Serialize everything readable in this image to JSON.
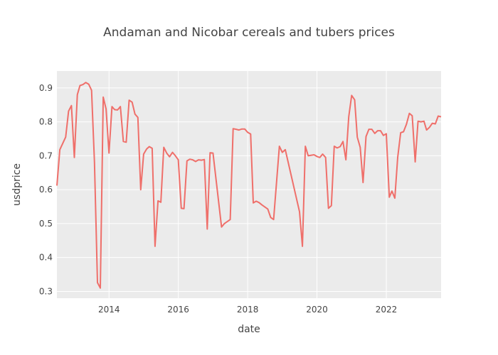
{
  "chart_data": {
    "type": "line",
    "title": "Andaman and Nicobar cereals and tubers prices",
    "xlabel": "date",
    "ylabel": "usdprice",
    "xlim": [
      "2012-07-01",
      "2023-08-01"
    ],
    "ylim": [
      0.28,
      0.95
    ],
    "grid": true,
    "legend": "none",
    "line_color": "#ef6f6a",
    "background_color": "#ebebeb",
    "x_ticks": [
      {
        "value": "2014-01-01",
        "label": "2014"
      },
      {
        "value": "2016-01-01",
        "label": "2016"
      },
      {
        "value": "2018-01-01",
        "label": "2018"
      },
      {
        "value": "2020-01-01",
        "label": "2020"
      },
      {
        "value": "2022-01-01",
        "label": "2022"
      }
    ],
    "y_ticks": [
      {
        "value": 0.3,
        "label": "0.3"
      },
      {
        "value": 0.4,
        "label": "0.4"
      },
      {
        "value": 0.5,
        "label": "0.5"
      },
      {
        "value": 0.6,
        "label": "0.6"
      },
      {
        "value": 0.7,
        "label": "0.7"
      },
      {
        "value": 0.8,
        "label": "0.8"
      },
      {
        "value": 0.9,
        "label": "0.9"
      }
    ],
    "series": [
      {
        "x": [
          "2012-07-01",
          "2012-08-01",
          "2012-10-01",
          "2012-11-01",
          "2012-12-01",
          "2013-01-01",
          "2013-02-01",
          "2013-03-01",
          "2013-04-01",
          "2013-05-01",
          "2013-06-01",
          "2013-07-01",
          "2013-08-01",
          "2013-09-01",
          "2013-10-01",
          "2013-11-01",
          "2013-12-01",
          "2014-01-01",
          "2014-02-01",
          "2014-03-01",
          "2014-04-01",
          "2014-05-01",
          "2014-06-01",
          "2014-07-01",
          "2014-08-01",
          "2014-09-01",
          "2014-10-01",
          "2014-11-01",
          "2014-12-01",
          "2015-01-01",
          "2015-02-01",
          "2015-03-01",
          "2015-04-01",
          "2015-05-01",
          "2015-06-01",
          "2015-07-01",
          "2015-08-01",
          "2015-09-01",
          "2015-10-01",
          "2015-11-01",
          "2015-12-01",
          "2016-01-01",
          "2016-02-01",
          "2016-03-01",
          "2016-04-01",
          "2016-05-01",
          "2016-06-01",
          "2016-07-01",
          "2016-08-01",
          "2016-09-01",
          "2016-10-01",
          "2016-11-01",
          "2016-12-01",
          "2017-01-01",
          "2017-04-01",
          "2017-05-01",
          "2017-07-01",
          "2017-08-01",
          "2017-09-01",
          "2017-10-01",
          "2017-11-01",
          "2017-12-01",
          "2018-01-01",
          "2018-02-01",
          "2018-03-01",
          "2018-04-01",
          "2018-05-01",
          "2018-06-01",
          "2018-08-01",
          "2018-09-01",
          "2018-10-01",
          "2018-12-01",
          "2019-01-01",
          "2019-02-01",
          "2019-07-01",
          "2019-08-01",
          "2019-09-01",
          "2019-10-01",
          "2019-12-01",
          "2020-01-01",
          "2020-02-01",
          "2020-03-01",
          "2020-04-01",
          "2020-05-01",
          "2020-06-01",
          "2020-07-01",
          "2020-08-01",
          "2020-09-01",
          "2020-10-01",
          "2020-11-01",
          "2020-12-01",
          "2021-01-01",
          "2021-02-01",
          "2021-03-01",
          "2021-04-01",
          "2021-05-01",
          "2021-06-01",
          "2021-07-01",
          "2021-08-01",
          "2021-09-01",
          "2021-10-01",
          "2021-11-01",
          "2021-12-01",
          "2022-01-01",
          "2022-02-01",
          "2022-03-01",
          "2022-04-01",
          "2022-05-01",
          "2022-06-01",
          "2022-07-01",
          "2022-08-01",
          "2022-09-01",
          "2022-10-01",
          "2022-11-01",
          "2022-12-01",
          "2023-01-01",
          "2023-02-01",
          "2023-03-01",
          "2023-04-01",
          "2023-05-01",
          "2023-06-01",
          "2023-07-01",
          "2023-08-01"
        ],
        "y": [
          0.612,
          0.718,
          0.755,
          0.832,
          0.848,
          0.695,
          0.88,
          0.907,
          0.91,
          0.916,
          0.911,
          0.893,
          0.68,
          0.326,
          0.31,
          0.873,
          0.838,
          0.708,
          0.845,
          0.836,
          0.835,
          0.845,
          0.742,
          0.74,
          0.864,
          0.858,
          0.823,
          0.813,
          0.6,
          0.705,
          0.72,
          0.727,
          0.722,
          0.433,
          0.567,
          0.563,
          0.725,
          0.708,
          0.697,
          0.71,
          0.7,
          0.688,
          0.545,
          0.544,
          0.685,
          0.69,
          0.688,
          0.683,
          0.688,
          0.687,
          0.689,
          0.484,
          0.709,
          0.708,
          0.49,
          0.5,
          0.512,
          0.78,
          0.778,
          0.776,
          0.779,
          0.779,
          0.769,
          0.764,
          0.561,
          0.566,
          0.562,
          0.555,
          0.543,
          0.518,
          0.512,
          0.728,
          0.71,
          0.718,
          0.535,
          0.433,
          0.728,
          0.7,
          0.703,
          0.698,
          0.695,
          0.705,
          0.695,
          0.545,
          0.553,
          0.728,
          0.723,
          0.727,
          0.742,
          0.688,
          0.815,
          0.878,
          0.865,
          0.755,
          0.725,
          0.621,
          0.757,
          0.778,
          0.778,
          0.766,
          0.774,
          0.774,
          0.76,
          0.765,
          0.578,
          0.596,
          0.575,
          0.695,
          0.768,
          0.771,
          0.793,
          0.825,
          0.818,
          0.682,
          0.802,
          0.8,
          0.802,
          0.776,
          0.784,
          0.796,
          0.794,
          0.817,
          0.815
        ]
      }
    ]
  }
}
